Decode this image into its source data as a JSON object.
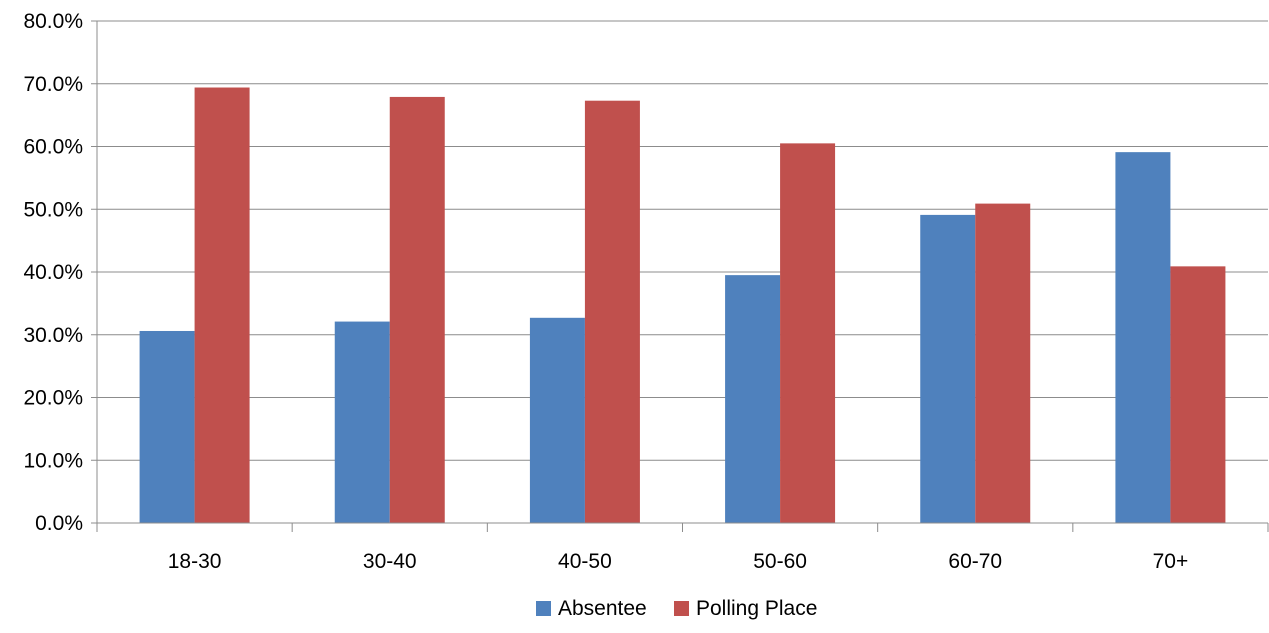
{
  "chart_data": {
    "type": "bar",
    "categories": [
      "18-30",
      "30-40",
      "40-50",
      "50-60",
      "60-70",
      "70+"
    ],
    "series": [
      {
        "name": "Absentee",
        "color": "#4F81BD",
        "values": [
          30.6,
          32.1,
          32.7,
          39.5,
          49.1,
          59.1
        ]
      },
      {
        "name": "Polling Place",
        "color": "#C0504D",
        "values": [
          69.4,
          67.9,
          67.3,
          60.5,
          50.9,
          40.9
        ]
      }
    ],
    "title": "",
    "xlabel": "",
    "ylabel": "",
    "ylim": [
      0,
      80
    ],
    "yticks": [
      "0.0%",
      "10.0%",
      "20.0%",
      "30.0%",
      "40.0%",
      "50.0%",
      "60.0%",
      "70.0%",
      "80.0%"
    ],
    "grid": true,
    "legend_position": "bottom"
  }
}
